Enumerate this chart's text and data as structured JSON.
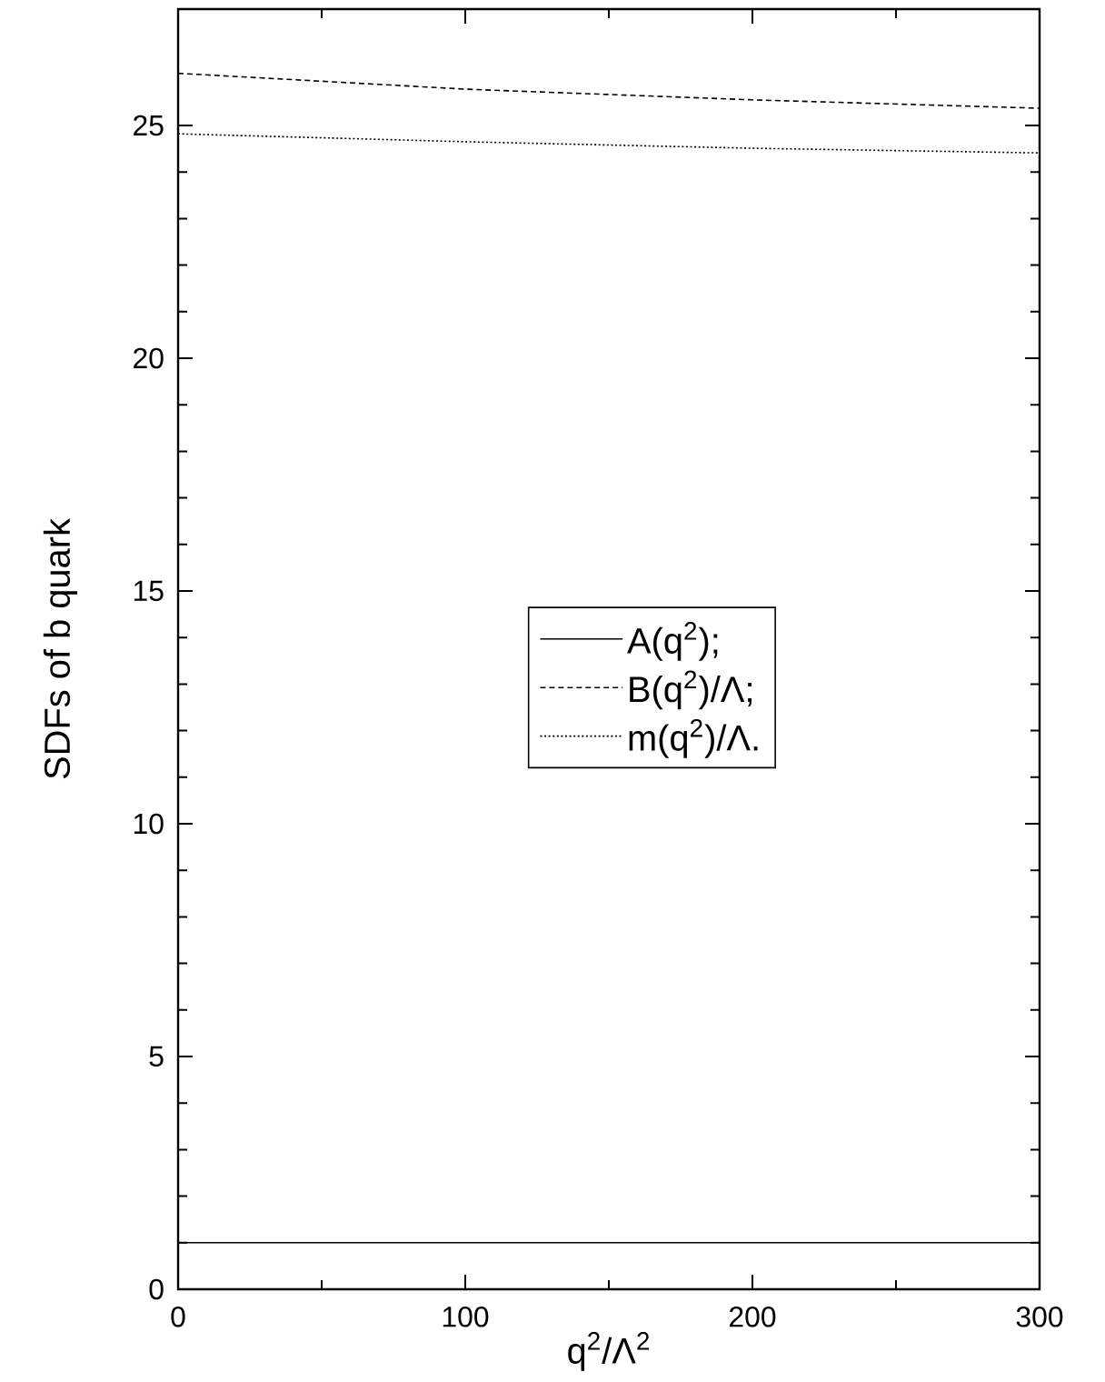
{
  "chart_data": {
    "type": "line",
    "xlabel": "q$^{2}$/Λ$^{2}$",
    "ylabel": "SDFs of b quark",
    "x": [
      0,
      100,
      200,
      300
    ],
    "xlim": [
      0,
      300
    ],
    "xticks": [
      0,
      100,
      200,
      300
    ],
    "ylim": [
      0,
      27.5
    ],
    "yticks": [
      0,
      5,
      10,
      15,
      20,
      25
    ],
    "grid": false,
    "legend": "center",
    "marker": "none",
    "series": [
      {
        "name": "A(q$^{2}$);",
        "color": "#000000",
        "line_style": "solid",
        "values": [
          1.0,
          1.0,
          1.0,
          1.0
        ]
      },
      {
        "name": "B(q$^{2}$)/Λ;",
        "color": "#000000",
        "line_style": "dashed",
        "values": [
          26.12,
          25.78,
          25.55,
          25.37
        ]
      },
      {
        "name": "m(q$^{2}$)/Λ.",
        "color": "#000000",
        "line_style": "dotted",
        "values": [
          24.82,
          24.65,
          24.51,
          24.41
        ]
      }
    ]
  }
}
